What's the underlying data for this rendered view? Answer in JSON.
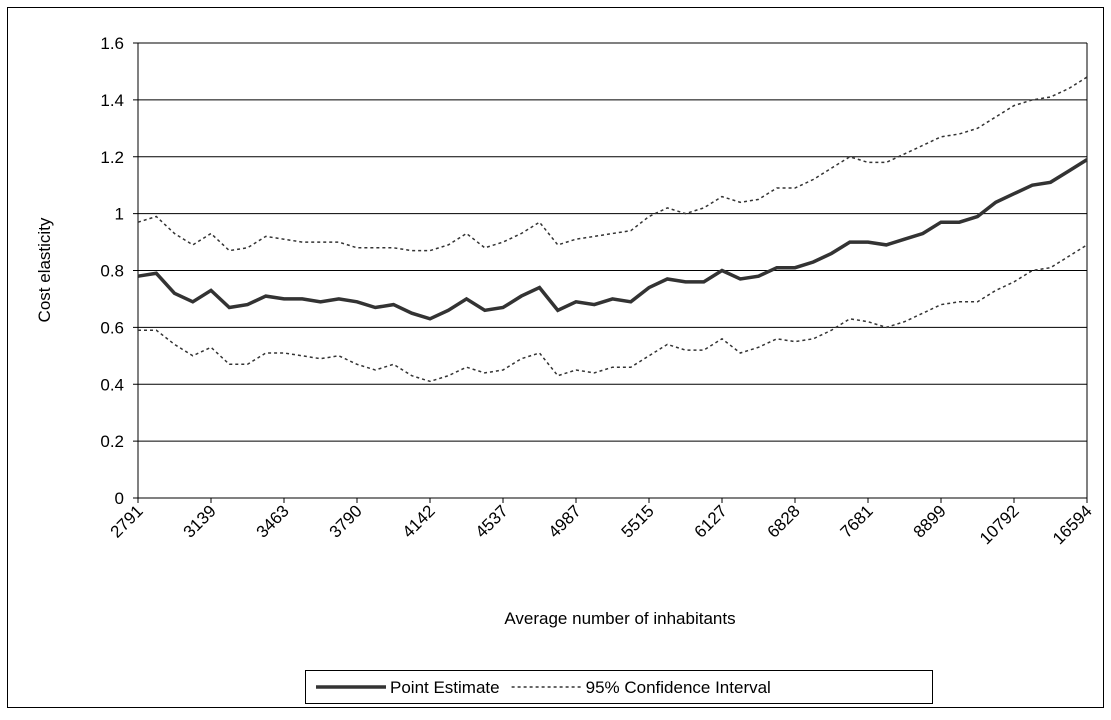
{
  "chart_data": {
    "type": "line",
    "x_label": "Average number of inhabitants",
    "y_label": "Cost elasticity",
    "categories": [
      "2791",
      null,
      null,
      null,
      "3139",
      null,
      null,
      null,
      "3463",
      null,
      null,
      null,
      "3790",
      null,
      null,
      null,
      "4142",
      null,
      null,
      null,
      "4537",
      null,
      null,
      null,
      "4987",
      null,
      null,
      null,
      "5515",
      null,
      null,
      null,
      "6127",
      null,
      null,
      null,
      "6828",
      null,
      null,
      null,
      "7681",
      null,
      null,
      null,
      "8899",
      null,
      null,
      null,
      "10792",
      null,
      null,
      null,
      "16594"
    ],
    "series": [
      {
        "name": "Point Estimate",
        "color": "#333333",
        "style": "solid",
        "values": [
          0.78,
          0.79,
          0.72,
          0.69,
          0.73,
          0.67,
          0.68,
          0.71,
          0.7,
          0.7,
          0.69,
          0.7,
          0.69,
          0.67,
          0.68,
          0.65,
          0.63,
          0.66,
          0.7,
          0.66,
          0.67,
          0.71,
          0.74,
          0.66,
          0.69,
          0.68,
          0.7,
          0.69,
          0.74,
          0.77,
          0.76,
          0.76,
          0.8,
          0.77,
          0.78,
          0.81,
          0.81,
          0.83,
          0.86,
          0.9,
          0.9,
          0.89,
          0.91,
          0.93,
          0.97,
          0.97,
          0.99,
          1.04,
          1.07,
          1.1,
          1.11,
          1.15,
          1.19
        ]
      },
      {
        "name": "95% Confidence Interval",
        "color": "#333333",
        "style": "dashed",
        "upper": [
          0.97,
          0.99,
          0.93,
          0.89,
          0.93,
          0.87,
          0.88,
          0.92,
          0.91,
          0.9,
          0.9,
          0.9,
          0.88,
          0.88,
          0.88,
          0.87,
          0.87,
          0.89,
          0.93,
          0.88,
          0.9,
          0.93,
          0.97,
          0.89,
          0.91,
          0.92,
          0.93,
          0.94,
          0.99,
          1.02,
          1.0,
          1.02,
          1.06,
          1.04,
          1.05,
          1.09,
          1.09,
          1.12,
          1.16,
          1.2,
          1.18,
          1.18,
          1.21,
          1.24,
          1.27,
          1.28,
          1.3,
          1.34,
          1.38,
          1.4,
          1.41,
          1.44,
          1.48
        ],
        "lower": [
          0.59,
          0.59,
          0.54,
          0.5,
          0.53,
          0.47,
          0.47,
          0.51,
          0.51,
          0.5,
          0.49,
          0.5,
          0.47,
          0.45,
          0.47,
          0.43,
          0.41,
          0.43,
          0.46,
          0.44,
          0.45,
          0.49,
          0.51,
          0.43,
          0.45,
          0.44,
          0.46,
          0.46,
          0.5,
          0.54,
          0.52,
          0.52,
          0.56,
          0.51,
          0.53,
          0.56,
          0.55,
          0.56,
          0.59,
          0.63,
          0.62,
          0.6,
          0.62,
          0.65,
          0.68,
          0.69,
          0.69,
          0.73,
          0.76,
          0.8,
          0.81,
          0.85,
          0.89
        ]
      }
    ],
    "ylim": [
      0,
      1.6
    ],
    "yticks": [
      0,
      0.2,
      0.4,
      0.6,
      0.8,
      1,
      1.2,
      1.4,
      1.6
    ],
    "grid": true,
    "legend": "bottom"
  }
}
